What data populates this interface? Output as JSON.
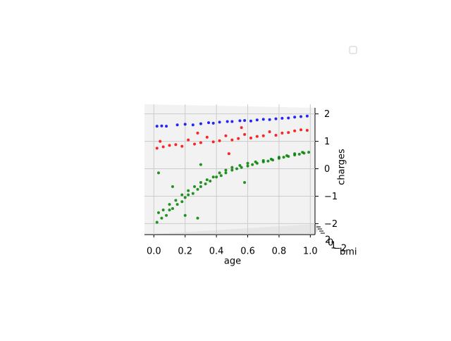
{
  "chart_data": {
    "type": "scatter3d",
    "xlabel": "age",
    "zlabel": "charges",
    "ylabel": "bmi",
    "xlim": [
      -0.06,
      1.03
    ],
    "xticks": [
      {
        "value": 0,
        "label": "0.0"
      },
      {
        "value": 0.2,
        "label": "0.2"
      },
      {
        "value": 0.4,
        "label": "0.4"
      },
      {
        "value": 0.6,
        "label": "0.6"
      },
      {
        "value": 0.8,
        "label": "0.8"
      },
      {
        "value": 1,
        "label": "1.0"
      }
    ],
    "zlim": [
      -2.4,
      2.35
    ],
    "zticks": [
      {
        "value": -2,
        "label": "−2"
      },
      {
        "value": -1,
        "label": "−1"
      },
      0,
      1,
      2
    ],
    "yticks": [
      2,
      0,
      1,
      {
        "value": -2,
        "label": "−2"
      }
    ],
    "grid": true,
    "series": [
      {
        "color": "#0000ff",
        "x": [
          0.02,
          0.05,
          0.08,
          0.15,
          0.2,
          0.25,
          0.3,
          0.35,
          0.38,
          0.42,
          0.47,
          0.5,
          0.55,
          0.58,
          0.62,
          0.66,
          0.7,
          0.74,
          0.78,
          0.82,
          0.86,
          0.9,
          0.94,
          0.98
        ],
        "values": [
          1.55,
          1.56,
          1.55,
          1.6,
          1.62,
          1.6,
          1.64,
          1.68,
          1.66,
          1.7,
          1.72,
          1.72,
          1.75,
          1.76,
          1.74,
          1.78,
          1.8,
          1.79,
          1.82,
          1.84,
          1.85,
          1.88,
          1.9,
          1.92
        ]
      },
      {
        "color": "#ff0000",
        "x": [
          0.02,
          0.04,
          0.06,
          0.1,
          0.14,
          0.18,
          0.22,
          0.26,
          0.3,
          0.34,
          0.38,
          0.42,
          0.46,
          0.5,
          0.54,
          0.58,
          0.62,
          0.66,
          0.7,
          0.74,
          0.78,
          0.82,
          0.86,
          0.9,
          0.94,
          0.98,
          0.48,
          0.28,
          0.56
        ],
        "values": [
          0.75,
          1.0,
          0.8,
          0.85,
          0.88,
          0.82,
          1.05,
          0.9,
          0.95,
          1.15,
          0.98,
          1.02,
          1.2,
          1.05,
          1.1,
          1.25,
          1.12,
          1.18,
          1.2,
          1.35,
          1.22,
          1.3,
          1.32,
          1.38,
          1.42,
          1.4,
          0.55,
          1.3,
          1.5
        ]
      },
      {
        "color": "#008000",
        "x": [
          0.02,
          0.05,
          0.08,
          0.1,
          0.12,
          0.15,
          0.18,
          0.2,
          0.22,
          0.25,
          0.28,
          0.3,
          0.33,
          0.36,
          0.4,
          0.43,
          0.46,
          0.5,
          0.53,
          0.56,
          0.6,
          0.63,
          0.66,
          0.7,
          0.73,
          0.76,
          0.8,
          0.83,
          0.86,
          0.9,
          0.93,
          0.96,
          0.99,
          0.03,
          0.06,
          0.1,
          0.14,
          0.18,
          0.22,
          0.26,
          0.3,
          0.34,
          0.38,
          0.42,
          0.46,
          0.5,
          0.55,
          0.6,
          0.65,
          0.7,
          0.75,
          0.8,
          0.85,
          0.9,
          0.95,
          0.03,
          0.12,
          0.3,
          0.58,
          0.2,
          0.28
        ],
        "values": [
          -1.95,
          -1.8,
          -1.7,
          -1.5,
          -1.45,
          -1.3,
          -1.2,
          -1.05,
          -0.95,
          -0.9,
          -0.75,
          -0.65,
          -0.55,
          -0.45,
          -0.3,
          -0.25,
          -0.15,
          -0.05,
          0.0,
          0.05,
          0.1,
          0.15,
          0.2,
          0.25,
          0.28,
          0.32,
          0.38,
          0.42,
          0.45,
          0.5,
          0.53,
          0.57,
          0.6,
          -1.6,
          -1.5,
          -1.3,
          -1.15,
          -0.95,
          -0.8,
          -0.65,
          -0.5,
          -0.4,
          -0.3,
          -0.15,
          -0.05,
          0.05,
          0.12,
          0.2,
          0.25,
          0.3,
          0.35,
          0.42,
          0.48,
          0.55,
          0.6,
          -0.15,
          -0.65,
          0.15,
          -0.5,
          -1.7,
          -1.8
        ]
      }
    ]
  }
}
